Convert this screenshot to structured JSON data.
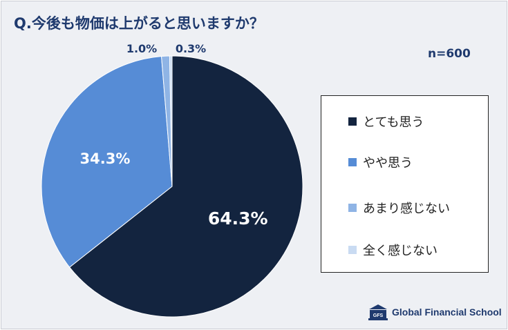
{
  "chart_data": {
    "type": "pie",
    "title": "Q.今後も物価は上がると思いますか？",
    "sample_size": "n=600",
    "categories": [
      "とても思う",
      "やや思う",
      "あまり感じない",
      "全く感じない"
    ],
    "values": [
      64.3,
      34.3,
      1.0,
      0.3
    ],
    "value_labels": [
      "64.3%",
      "34.3%",
      "1.0%",
      "0.3%"
    ],
    "colors": [
      "#13243f",
      "#568cd6",
      "#8fb4e5",
      "#c9dbf2"
    ],
    "legend": "right"
  },
  "brand": {
    "name": "Global Financial School",
    "logo_icon": "school-building-icon",
    "logo_letters": "GFS"
  }
}
